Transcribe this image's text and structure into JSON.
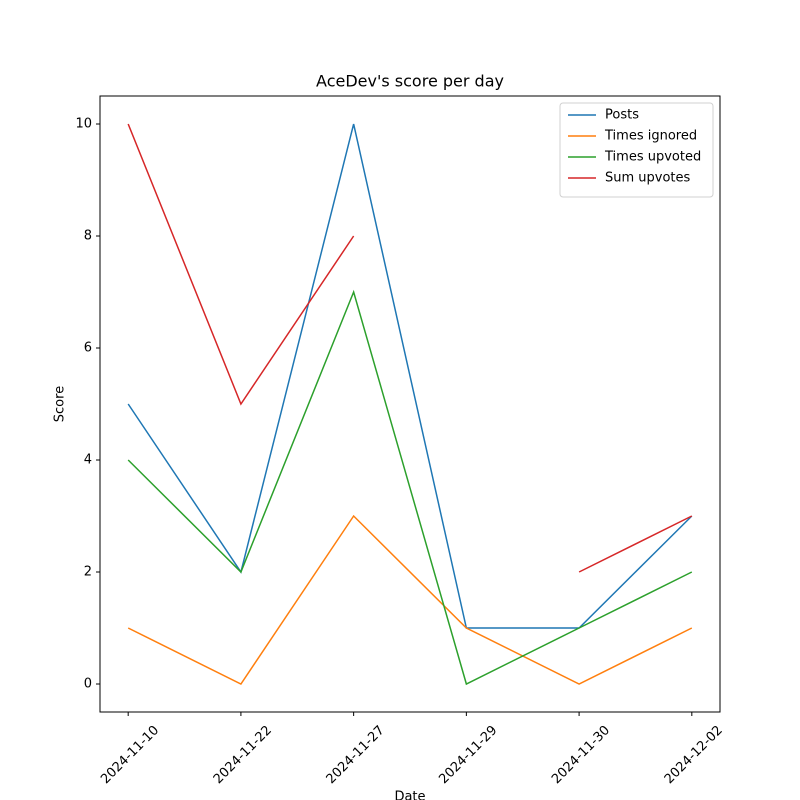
{
  "chart_data": {
    "type": "line",
    "title": "AceDev's score per day",
    "xlabel": "Date",
    "ylabel": "Score",
    "categories": [
      "2024-11-10",
      "2024-11-22",
      "2024-11-27",
      "2024-11-29",
      "2024-11-30",
      "2024-12-02"
    ],
    "series": [
      {
        "name": "Posts",
        "color": "#1f77b4",
        "values": [
          5,
          2,
          10,
          1,
          1,
          3
        ]
      },
      {
        "name": "Times ignored",
        "color": "#ff7f0e",
        "values": [
          1,
          0,
          3,
          1,
          0,
          1
        ]
      },
      {
        "name": "Times upvoted",
        "color": "#2ca02c",
        "values": [
          4,
          2,
          7,
          0,
          1,
          2
        ]
      },
      {
        "name": "Sum upvotes",
        "color": "#d62728",
        "values": [
          10,
          5,
          8,
          null,
          2,
          3
        ]
      }
    ],
    "ylim": [
      -0.5,
      10.5
    ],
    "yticks": [
      0,
      2,
      4,
      6,
      8,
      10
    ],
    "legend": "upper right",
    "grid": false
  }
}
